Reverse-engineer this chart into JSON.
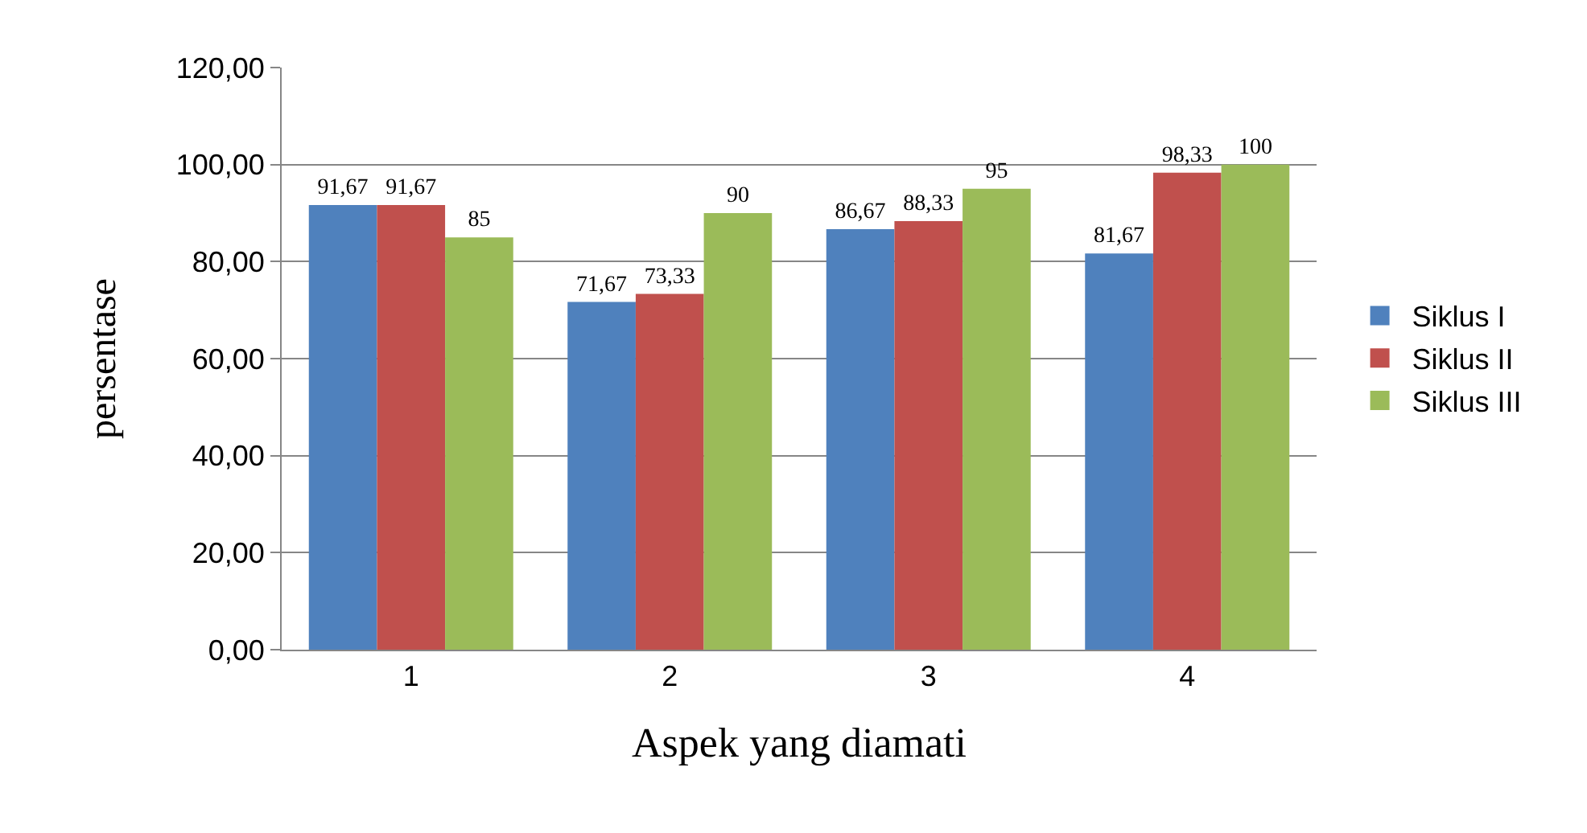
{
  "chart_data": {
    "type": "bar",
    "xlabel": "Aspek yang diamati",
    "ylabel": "persentase",
    "categories": [
      "1",
      "2",
      "3",
      "4"
    ],
    "series": [
      {
        "name": "Siklus I",
        "color": "#4f81bd",
        "values": [
          91.67,
          71.67,
          86.67,
          81.67
        ],
        "value_labels": [
          "91,67",
          "71,67",
          "86,67",
          "81,67"
        ]
      },
      {
        "name": "Siklus II",
        "color": "#c0504d",
        "values": [
          91.67,
          73.33,
          88.33,
          98.33
        ],
        "value_labels": [
          "91,67",
          "73,33",
          "88,33",
          "98,33"
        ]
      },
      {
        "name": "Siklus III",
        "color": "#9bbb59",
        "values": [
          85,
          90,
          95,
          100
        ],
        "value_labels": [
          "85",
          "90",
          "95",
          "100"
        ]
      }
    ],
    "ylim": [
      0,
      120
    ],
    "yticks": [
      {
        "value": 0,
        "label": "0,00"
      },
      {
        "value": 20,
        "label": "20,00"
      },
      {
        "value": 40,
        "label": "40,00"
      },
      {
        "value": 60,
        "label": "60,00"
      },
      {
        "value": 80,
        "label": "80,00"
      },
      {
        "value": 100,
        "label": "100,00"
      },
      {
        "value": 120,
        "label": "120,00"
      }
    ],
    "grid": "y",
    "legend": "right"
  }
}
